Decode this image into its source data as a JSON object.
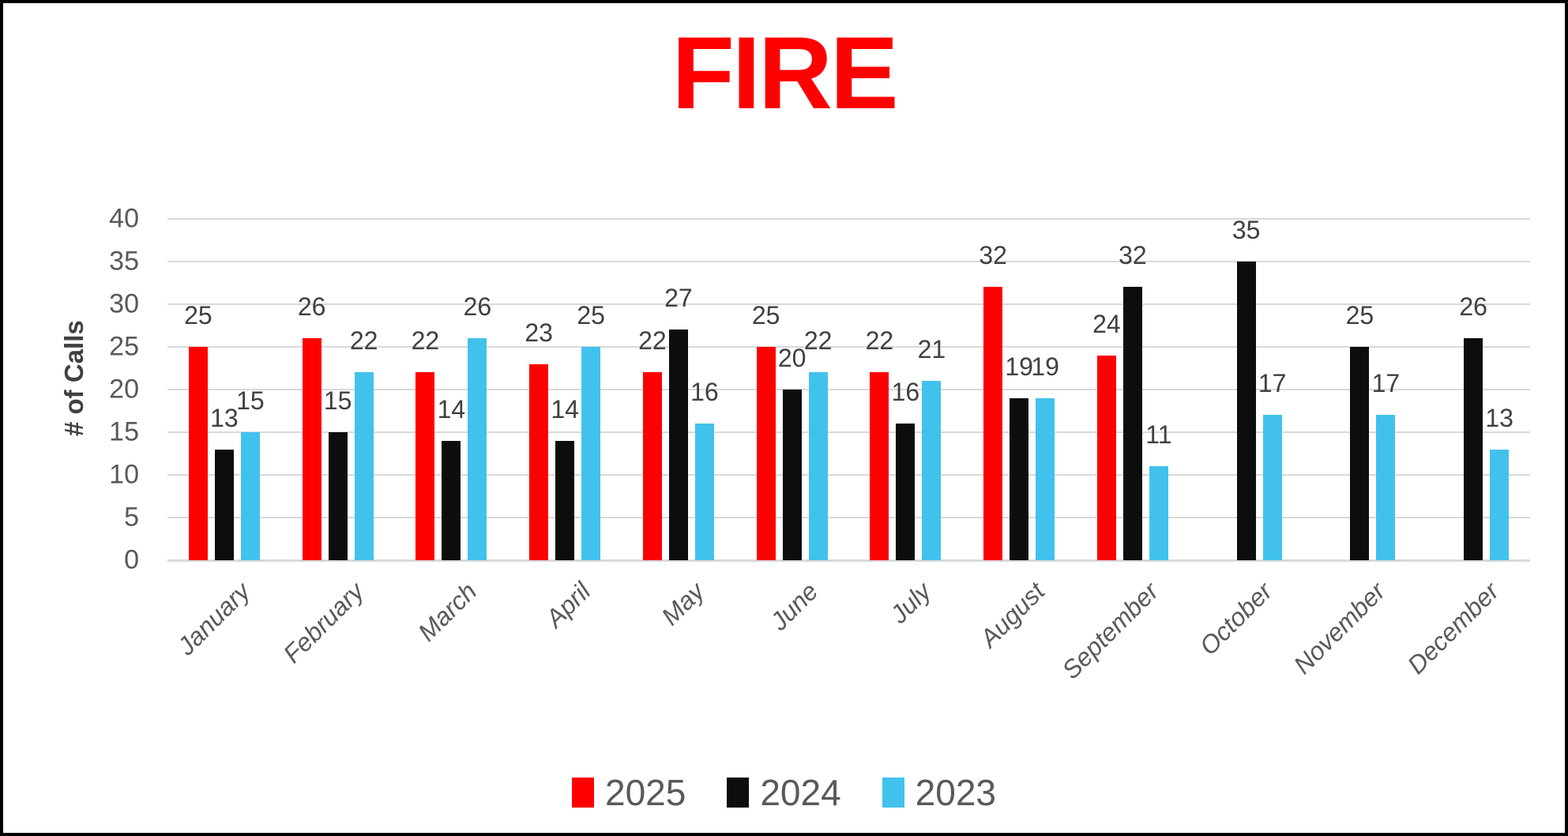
{
  "title": "FIRE",
  "y_axis_title": "# of Calls",
  "chart_data": {
    "type": "bar",
    "title": "FIRE",
    "ylabel": "# of Calls",
    "ylim": [
      0,
      40
    ],
    "ytick_step": 5,
    "grid": true,
    "legend_position": "bottom",
    "categories": [
      "January",
      "February",
      "March",
      "April",
      "May",
      "June",
      "July",
      "August",
      "September",
      "October",
      "November",
      "December"
    ],
    "series": [
      {
        "name": "2025",
        "color": "#ff0000",
        "values": [
          25,
          26,
          22,
          23,
          22,
          25,
          22,
          32,
          24,
          null,
          null,
          null
        ]
      },
      {
        "name": "2024",
        "color": "#0d0d0d",
        "values": [
          13,
          15,
          14,
          14,
          27,
          20,
          16,
          19,
          32,
          35,
          25,
          26
        ]
      },
      {
        "name": "2023",
        "color": "#41c2ec",
        "values": [
          15,
          22,
          26,
          25,
          16,
          22,
          21,
          19,
          11,
          17,
          17,
          13
        ]
      }
    ]
  },
  "colors": {
    "title": "#ff0000",
    "axis_text": "#595959",
    "data_label": "#404040",
    "gridline": "#d9d9d9",
    "background": "#ffffff",
    "border": "#000000"
  }
}
